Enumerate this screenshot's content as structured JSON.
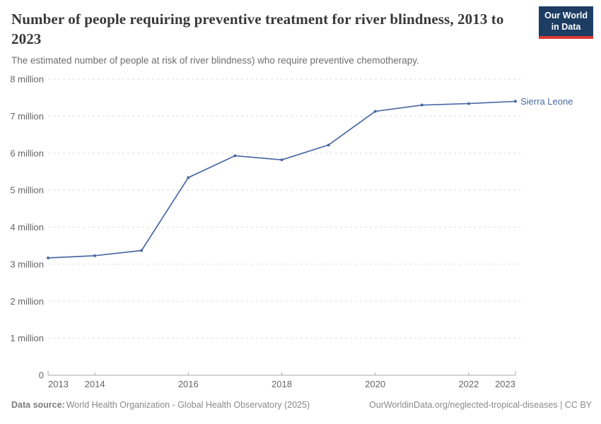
{
  "header": {
    "title": "Number of people requiring preventive treatment for river blindness, 2013 to 2023",
    "subtitle": "The estimated number of people at risk of river blindness) who require preventive chemotherapy.",
    "logo": {
      "line1": "Our World",
      "line2": "in Data",
      "bg_color": "#1d3d63",
      "accent_color": "#d93832"
    }
  },
  "chart_data": {
    "type": "line",
    "title": "Number of people requiring preventive treatment for river blindness, 2013 to 2023",
    "xlabel": "",
    "ylabel": "",
    "x": [
      2013,
      2014,
      2015,
      2016,
      2017,
      2018,
      2019,
      2020,
      2021,
      2022,
      2023
    ],
    "series": [
      {
        "name": "Sierra Leone",
        "color": "#4a69a4",
        "values": [
          3170000,
          3230000,
          3370000,
          5340000,
          5930000,
          5820000,
          6220000,
          7130000,
          7300000,
          7340000,
          7400000
        ]
      }
    ],
    "xlim": [
      2013,
      2023
    ],
    "ylim": [
      0,
      8000000
    ],
    "grid": true,
    "legend_position": "end-of-line-label",
    "y_ticks": [
      {
        "value": 0,
        "label": "0"
      },
      {
        "value": 1000000,
        "label": "1 million"
      },
      {
        "value": 2000000,
        "label": "2 million"
      },
      {
        "value": 3000000,
        "label": "3 million"
      },
      {
        "value": 4000000,
        "label": "4 million"
      },
      {
        "value": 5000000,
        "label": "5 million"
      },
      {
        "value": 6000000,
        "label": "6 million"
      },
      {
        "value": 7000000,
        "label": "7 million"
      },
      {
        "value": 8000000,
        "label": "8 million"
      }
    ],
    "x_ticks": [
      {
        "value": 2013,
        "label": "2013",
        "align": "start"
      },
      {
        "value": 2014,
        "label": "2014",
        "align": "middle"
      },
      {
        "value": 2016,
        "label": "2016",
        "align": "middle"
      },
      {
        "value": 2018,
        "label": "2018",
        "align": "middle"
      },
      {
        "value": 2020,
        "label": "2020",
        "align": "middle"
      },
      {
        "value": 2022,
        "label": "2022",
        "align": "middle"
      },
      {
        "value": 2023,
        "label": "2023",
        "align": "end"
      }
    ],
    "colors": {
      "grid": "#dddddd",
      "axis": "#a8a8a8",
      "tick_label": "#666666"
    }
  },
  "footer": {
    "source_label": "Data source:",
    "source_text": "World Health Organization - Global Health Observatory (2025)",
    "url_text": "OurWorldinData.org/neglected-tropical-diseases",
    "license_text": " | CC BY"
  }
}
